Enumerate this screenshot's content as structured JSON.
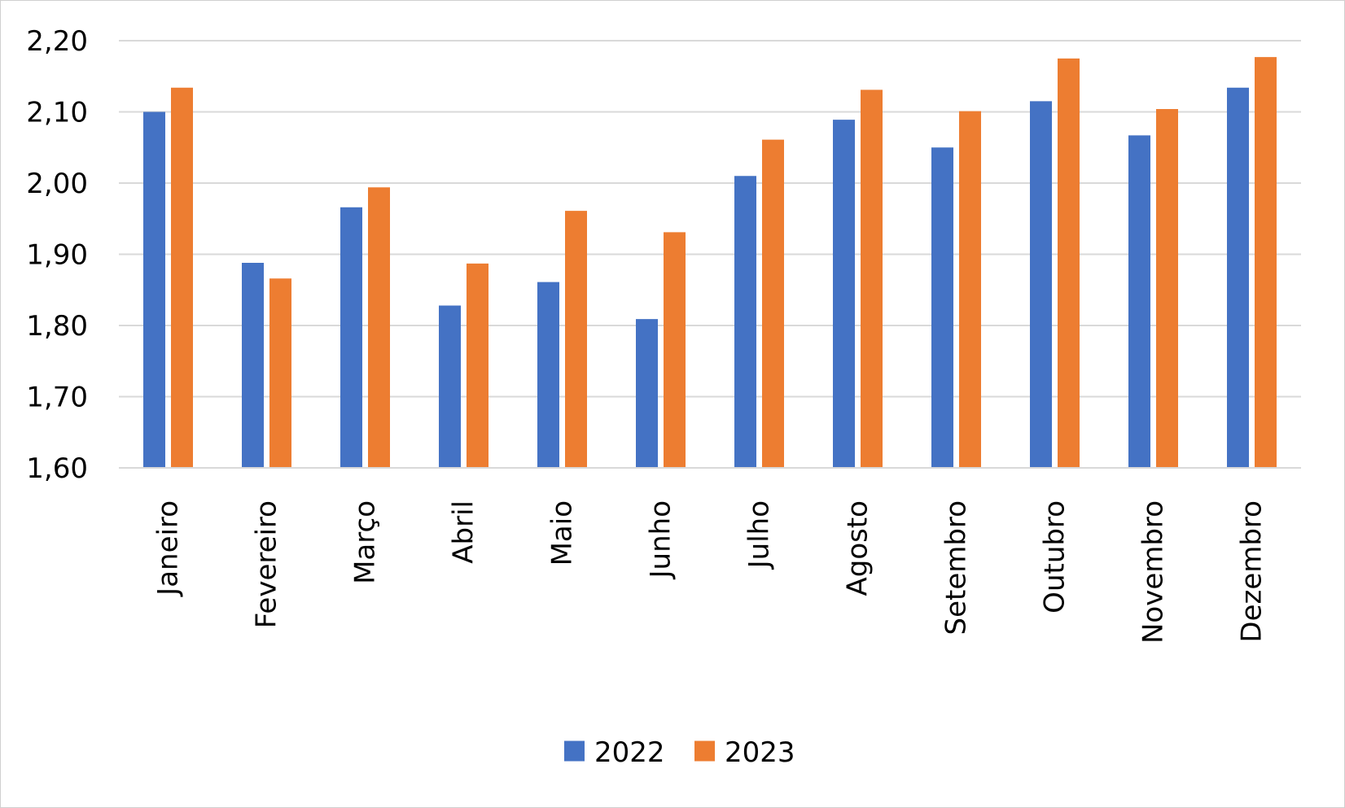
{
  "chart_data": {
    "type": "bar",
    "title": "",
    "xlabel": "",
    "ylabel": "",
    "ylim": [
      1.6,
      2.2
    ],
    "yticks": [
      1.6,
      1.7,
      1.8,
      1.9,
      2.0,
      2.1,
      2.2
    ],
    "ytick_labels": [
      "1,60",
      "1,70",
      "1,80",
      "1,90",
      "2,00",
      "2,10",
      "2,20"
    ],
    "grid": true,
    "legend_position": "bottom",
    "categories": [
      "Janeiro",
      "Fevereiro",
      "Março",
      "Abril",
      "Maio",
      "Junho",
      "Julho",
      "Agosto",
      "Setembro",
      "Outubro",
      "Novembro",
      "Dezembro"
    ],
    "series": [
      {
        "name": "2022",
        "color": "#4472C4",
        "values": [
          2.1,
          1.888,
          1.966,
          1.828,
          1.861,
          1.809,
          2.01,
          2.089,
          2.05,
          2.115,
          2.067,
          2.134
        ]
      },
      {
        "name": "2023",
        "color": "#ED7D31",
        "values": [
          2.134,
          1.866,
          1.994,
          1.887,
          1.961,
          1.931,
          2.061,
          2.131,
          2.101,
          2.175,
          2.104,
          2.177
        ]
      }
    ]
  }
}
